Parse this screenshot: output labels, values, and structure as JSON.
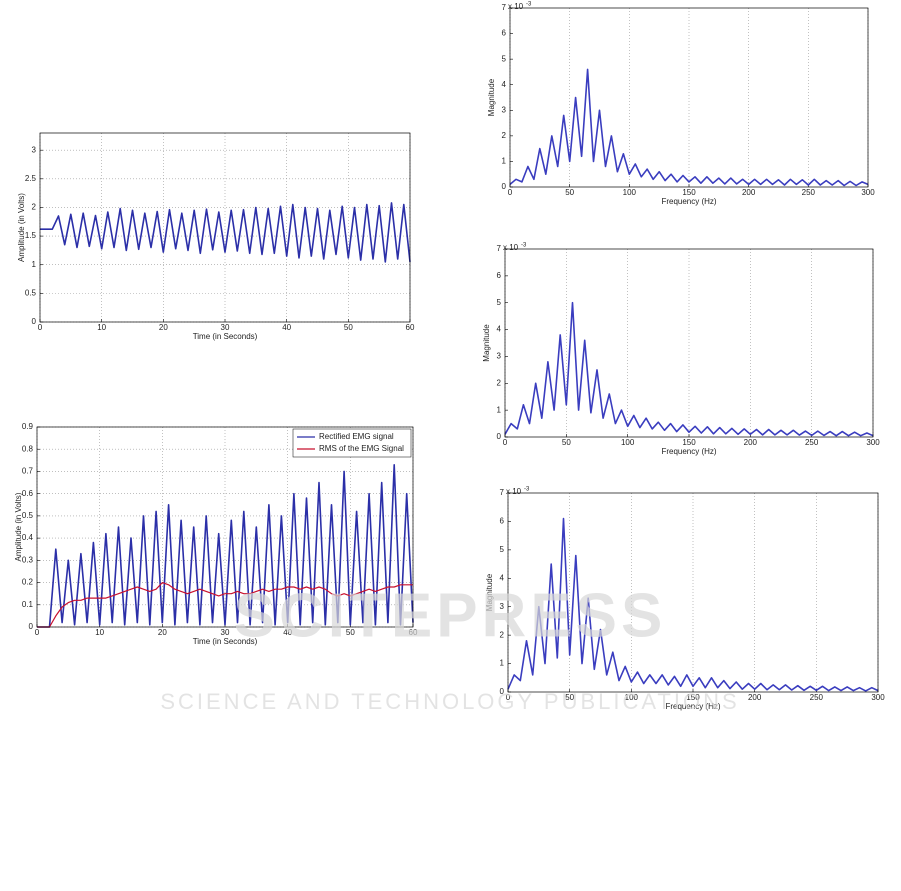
{
  "watermark": {
    "title": "SCITEPRESS",
    "subtitle": "SCIENCE AND TECHNOLOGY PUBLICATIONS"
  },
  "chart_data": [
    {
      "type": "line",
      "xlabel": "Time (in Seconds)",
      "ylabel": "Amplitude (in Volts)",
      "xlim": [
        0,
        60
      ],
      "xticks": [
        0,
        10,
        20,
        30,
        40,
        50,
        60
      ],
      "ylim": [
        0,
        3.3
      ],
      "yticks": [
        0,
        0.5,
        1,
        1.5,
        2,
        2.5,
        3
      ],
      "xgrid": true,
      "ygrid": true,
      "x": [
        0,
        1,
        2,
        3,
        4,
        5,
        6,
        7,
        8,
        9,
        10,
        11,
        12,
        13,
        14,
        15,
        16,
        17,
        18,
        19,
        20,
        21,
        22,
        23,
        24,
        25,
        26,
        27,
        28,
        29,
        30,
        31,
        32,
        33,
        34,
        35,
        36,
        37,
        38,
        39,
        40,
        41,
        42,
        43,
        44,
        45,
        46,
        47,
        48,
        49,
        50,
        51,
        52,
        53,
        54,
        55,
        56,
        57,
        58,
        59,
        60
      ],
      "series": [
        {
          "color": "#2b2fa8",
          "values": [
            1.62,
            1.62,
            1.62,
            1.85,
            1.35,
            1.88,
            1.3,
            1.9,
            1.32,
            1.86,
            1.28,
            1.92,
            1.3,
            1.98,
            1.25,
            1.95,
            1.27,
            1.9,
            1.3,
            1.93,
            1.22,
            1.96,
            1.28,
            1.9,
            1.25,
            1.95,
            1.2,
            1.97,
            1.26,
            1.92,
            1.22,
            1.95,
            1.24,
            1.96,
            1.2,
            2.0,
            1.18,
            1.98,
            1.2,
            2.02,
            1.15,
            2.05,
            1.12,
            2.0,
            1.15,
            1.98,
            1.1,
            1.95,
            1.18,
            2.02,
            1.12,
            2.0,
            1.08,
            2.05,
            1.1,
            2.03,
            1.05,
            2.08,
            1.1,
            2.05,
            1.05
          ]
        }
      ]
    },
    {
      "type": "line",
      "xlabel": "Time (in Seconds)",
      "ylabel": "Amplitude (in Volts)",
      "xlim": [
        0,
        60
      ],
      "xticks": [
        0,
        10,
        20,
        30,
        40,
        50,
        60
      ],
      "ylim": [
        0,
        0.9
      ],
      "yticks": [
        0,
        0.1,
        0.2,
        0.3,
        0.4,
        0.5,
        0.6,
        0.7,
        0.8,
        0.9
      ],
      "xgrid": true,
      "ygrid": true,
      "legend": "upper right",
      "x": [
        0,
        1,
        2,
        3,
        4,
        5,
        6,
        7,
        8,
        9,
        10,
        11,
        12,
        13,
        14,
        15,
        16,
        17,
        18,
        19,
        20,
        21,
        22,
        23,
        24,
        25,
        26,
        27,
        28,
        29,
        30,
        31,
        32,
        33,
        34,
        35,
        36,
        37,
        38,
        39,
        40,
        41,
        42,
        43,
        44,
        45,
        46,
        47,
        48,
        49,
        50,
        51,
        52,
        53,
        54,
        55,
        56,
        57,
        58,
        59,
        60
      ],
      "series": [
        {
          "name": "Rectified EMG signal",
          "color": "#2b2fa8",
          "values": [
            0,
            0,
            0,
            0.35,
            0.02,
            0.3,
            0.01,
            0.33,
            0.02,
            0.38,
            0.01,
            0.42,
            0.02,
            0.45,
            0.01,
            0.4,
            0.02,
            0.5,
            0.01,
            0.52,
            0.02,
            0.55,
            0.01,
            0.48,
            0.02,
            0.45,
            0.01,
            0.5,
            0.02,
            0.42,
            0.01,
            0.48,
            0.02,
            0.52,
            0.01,
            0.45,
            0.02,
            0.55,
            0.01,
            0.5,
            0.02,
            0.6,
            0.01,
            0.58,
            0.02,
            0.65,
            0.01,
            0.55,
            0.02,
            0.7,
            0.01,
            0.52,
            0.02,
            0.6,
            0.01,
            0.65,
            0.02,
            0.73,
            0.01,
            0.6,
            0.02
          ]
        },
        {
          "name": "RMS of the EMG Signal",
          "color": "#c8102e",
          "values": [
            0,
            0,
            0,
            0.05,
            0.09,
            0.11,
            0.12,
            0.12,
            0.13,
            0.13,
            0.13,
            0.13,
            0.14,
            0.15,
            0.16,
            0.17,
            0.18,
            0.17,
            0.16,
            0.17,
            0.2,
            0.19,
            0.17,
            0.16,
            0.15,
            0.16,
            0.17,
            0.16,
            0.15,
            0.14,
            0.15,
            0.15,
            0.16,
            0.15,
            0.15,
            0.16,
            0.17,
            0.16,
            0.17,
            0.17,
            0.18,
            0.18,
            0.17,
            0.18,
            0.17,
            0.18,
            0.17,
            0.15,
            0.14,
            0.15,
            0.14,
            0.15,
            0.16,
            0.17,
            0.16,
            0.17,
            0.18,
            0.18,
            0.19,
            0.19,
            0.19
          ]
        }
      ]
    },
    {
      "type": "line",
      "xlabel": "Frequency (Hz)",
      "ylabel": "Magnitude",
      "y_multiplier": "x 10",
      "y_exponent": "-3",
      "xlim": [
        0,
        300
      ],
      "xticks": [
        0,
        50,
        100,
        150,
        200,
        250,
        300
      ],
      "ylim": [
        0,
        7
      ],
      "yticks": [
        0,
        1,
        2,
        3,
        4,
        5,
        6,
        7
      ],
      "xgrid": true,
      "ygrid": false,
      "x": [
        0,
        5,
        10,
        15,
        20,
        25,
        30,
        35,
        40,
        45,
        50,
        55,
        60,
        65,
        70,
        75,
        80,
        85,
        90,
        95,
        100,
        105,
        110,
        115,
        120,
        125,
        130,
        135,
        140,
        145,
        150,
        155,
        160,
        165,
        170,
        175,
        180,
        185,
        190,
        195,
        200,
        205,
        210,
        215,
        220,
        225,
        230,
        235,
        240,
        245,
        250,
        255,
        260,
        265,
        270,
        275,
        280,
        285,
        290,
        295,
        300
      ],
      "series": [
        {
          "color": "#3a3dbf",
          "values": [
            0.1,
            0.3,
            0.2,
            0.8,
            0.3,
            1.5,
            0.5,
            2.0,
            0.8,
            2.8,
            1.0,
            3.5,
            1.2,
            4.6,
            1.0,
            3.0,
            0.8,
            2.0,
            0.6,
            1.3,
            0.5,
            0.9,
            0.4,
            0.7,
            0.3,
            0.6,
            0.25,
            0.5,
            0.2,
            0.45,
            0.2,
            0.4,
            0.15,
            0.4,
            0.15,
            0.35,
            0.12,
            0.35,
            0.12,
            0.3,
            0.1,
            0.3,
            0.1,
            0.3,
            0.1,
            0.28,
            0.08,
            0.3,
            0.1,
            0.28,
            0.08,
            0.3,
            0.08,
            0.25,
            0.08,
            0.25,
            0.06,
            0.22,
            0.06,
            0.2,
            0.1
          ]
        }
      ]
    },
    {
      "type": "line",
      "xlabel": "Frequency (Hz)",
      "ylabel": "Magnitude",
      "y_multiplier": "x 10",
      "y_exponent": "-3",
      "xlim": [
        0,
        300
      ],
      "xticks": [
        0,
        50,
        100,
        150,
        200,
        250,
        300
      ],
      "ylim": [
        0,
        7
      ],
      "yticks": [
        0,
        1,
        2,
        3,
        4,
        5,
        6,
        7
      ],
      "xgrid": true,
      "ygrid": false,
      "x": [
        0,
        5,
        10,
        15,
        20,
        25,
        30,
        35,
        40,
        45,
        50,
        55,
        60,
        65,
        70,
        75,
        80,
        85,
        90,
        95,
        100,
        105,
        110,
        115,
        120,
        125,
        130,
        135,
        140,
        145,
        150,
        155,
        160,
        165,
        170,
        175,
        180,
        185,
        190,
        195,
        200,
        205,
        210,
        215,
        220,
        225,
        230,
        235,
        240,
        245,
        250,
        255,
        260,
        265,
        270,
        275,
        280,
        285,
        290,
        295,
        300
      ],
      "series": [
        {
          "color": "#3a3dbf",
          "values": [
            0.1,
            0.5,
            0.3,
            1.2,
            0.5,
            2.0,
            0.7,
            2.8,
            1.0,
            3.8,
            1.2,
            5.0,
            1.0,
            3.6,
            0.9,
            2.5,
            0.7,
            1.6,
            0.5,
            1.0,
            0.4,
            0.8,
            0.35,
            0.7,
            0.3,
            0.55,
            0.25,
            0.5,
            0.2,
            0.45,
            0.18,
            0.4,
            0.15,
            0.38,
            0.12,
            0.35,
            0.12,
            0.32,
            0.1,
            0.3,
            0.1,
            0.28,
            0.08,
            0.28,
            0.08,
            0.25,
            0.08,
            0.25,
            0.07,
            0.22,
            0.06,
            0.22,
            0.06,
            0.2,
            0.05,
            0.2,
            0.05,
            0.18,
            0.05,
            0.15,
            0.05
          ]
        }
      ]
    },
    {
      "type": "line",
      "xlabel": "Frequency (Hz)",
      "ylabel": "Magnitude",
      "y_multiplier": "x 10",
      "y_exponent": "-3",
      "xlim": [
        0,
        300
      ],
      "xticks": [
        0,
        50,
        100,
        150,
        200,
        250,
        300
      ],
      "ylim": [
        0,
        7
      ],
      "yticks": [
        0,
        1,
        2,
        3,
        4,
        5,
        6,
        7
      ],
      "xgrid": true,
      "ygrid": false,
      "x": [
        0,
        5,
        10,
        15,
        20,
        25,
        30,
        35,
        40,
        45,
        50,
        55,
        60,
        65,
        70,
        75,
        80,
        85,
        90,
        95,
        100,
        105,
        110,
        115,
        120,
        125,
        130,
        135,
        140,
        145,
        150,
        155,
        160,
        165,
        170,
        175,
        180,
        185,
        190,
        195,
        200,
        205,
        210,
        215,
        220,
        225,
        230,
        235,
        240,
        245,
        250,
        255,
        260,
        265,
        270,
        275,
        280,
        285,
        290,
        295,
        300
      ],
      "series": [
        {
          "color": "#3a3dbf",
          "values": [
            0.1,
            0.6,
            0.4,
            1.8,
            0.6,
            3.0,
            1.0,
            4.5,
            1.2,
            6.1,
            1.3,
            4.8,
            1.0,
            3.3,
            0.8,
            2.2,
            0.6,
            1.4,
            0.4,
            0.9,
            0.35,
            0.7,
            0.3,
            0.6,
            0.3,
            0.6,
            0.25,
            0.55,
            0.2,
            0.6,
            0.2,
            0.5,
            0.15,
            0.5,
            0.15,
            0.4,
            0.12,
            0.35,
            0.1,
            0.3,
            0.1,
            0.3,
            0.08,
            0.25,
            0.08,
            0.25,
            0.07,
            0.22,
            0.06,
            0.2,
            0.06,
            0.2,
            0.05,
            0.18,
            0.05,
            0.18,
            0.05,
            0.15,
            0.04,
            0.15,
            0.05
          ]
        }
      ]
    }
  ]
}
